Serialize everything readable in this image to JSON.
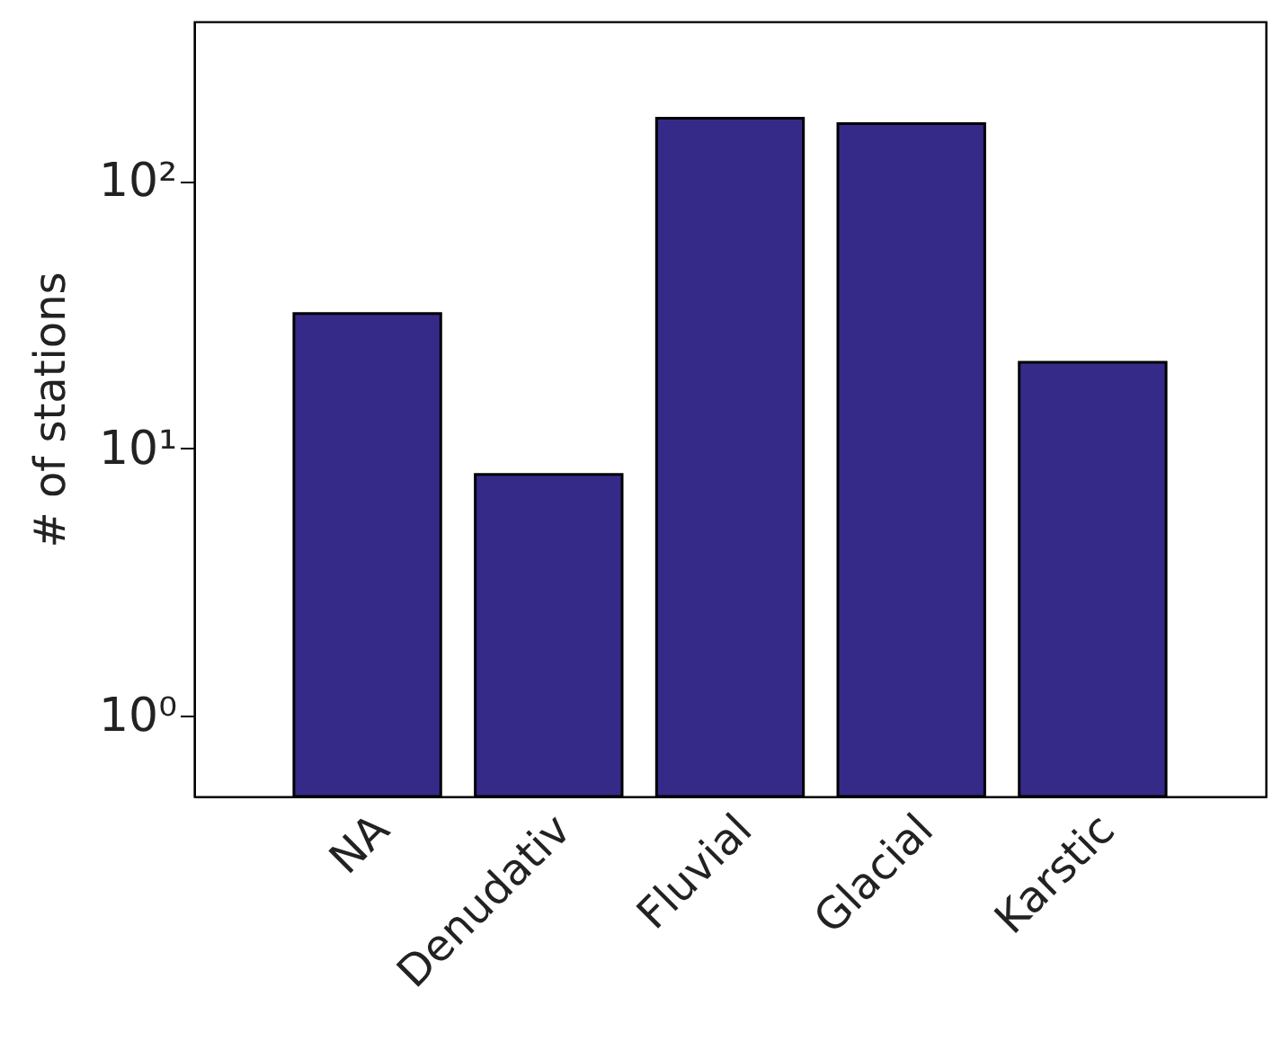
{
  "chart_data": {
    "type": "bar",
    "ylabel": "# of stations",
    "categories": [
      "NA",
      "Denudativ",
      "Fluvial",
      "Glacial",
      "Karstic"
    ],
    "values": [
      32,
      8,
      172,
      164,
      21
    ],
    "color": "#352a87",
    "log": "y",
    "ylim": [
      0.5,
      395
    ],
    "yticks": [
      {
        "value": 1,
        "label": "10⁰"
      },
      {
        "value": 10,
        "label": "10¹"
      },
      {
        "value": 100,
        "label": "10²"
      }
    ],
    "grid": false
  }
}
